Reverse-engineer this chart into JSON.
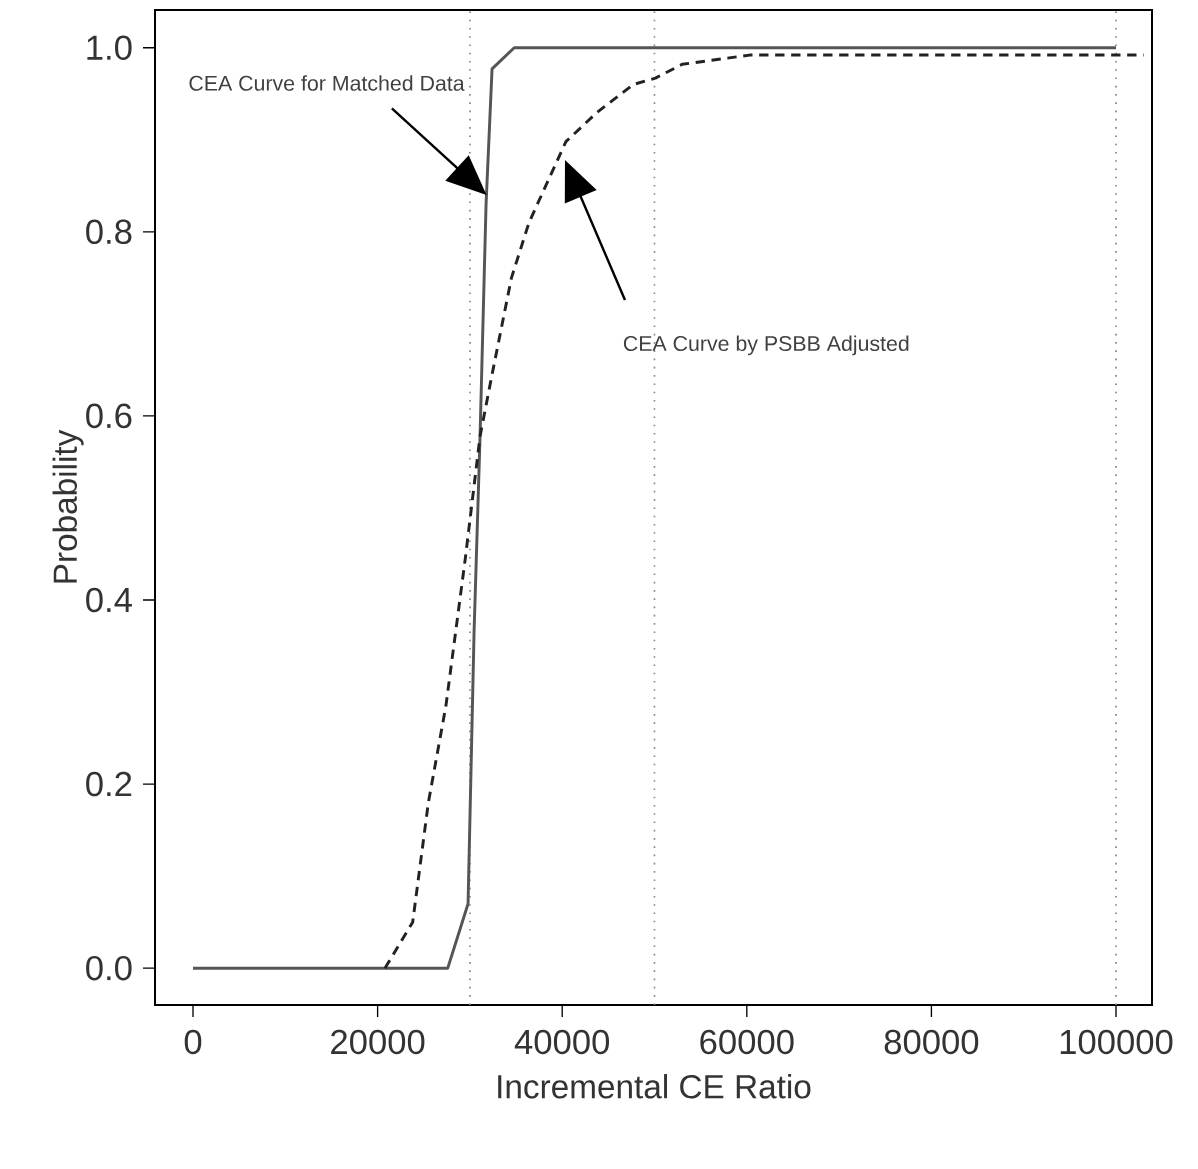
{
  "chart_data": {
    "type": "line",
    "xlabel": "Incremental CE Ratio",
    "ylabel": "Probability",
    "xlim": [
      -4117,
      103900
    ],
    "ylim": [
      -0.04,
      1.041
    ],
    "xticks": [
      0,
      20000,
      40000,
      60000,
      80000,
      100000
    ],
    "yticks": [
      {
        "value": 0,
        "label": "0.0"
      },
      {
        "value": 0.2,
        "label": "0.2"
      },
      {
        "value": 0.4,
        "label": "0.4"
      },
      {
        "value": 0.6,
        "label": "0.6"
      },
      {
        "value": 0.8,
        "label": "0.8"
      },
      {
        "value": 1,
        "label": "1.0"
      }
    ],
    "marker": "none",
    "series": [
      {
        "color": "#555555",
        "line_style": "solid",
        "x": [
          0,
          27600,
          29800,
          30450,
          31100,
          31750,
          32400,
          34800,
          100000
        ],
        "values": [
          0,
          0,
          0.07,
          0.365,
          0.578,
          0.83,
          0.977,
          1.0,
          1.0
        ]
      },
      {
        "color": "#222222",
        "line_style": "dashed",
        "x": [
          20800,
          21100,
          23800,
          25500,
          27400,
          29500,
          31100,
          32400,
          34500,
          36400,
          40400,
          43800,
          47700,
          50100,
          53000,
          60300,
          100000,
          103000
        ],
        "values": [
          0,
          0.005,
          0.05,
          0.18,
          0.285,
          0.445,
          0.578,
          0.645,
          0.75,
          0.81,
          0.898,
          0.93,
          0.96,
          0.967,
          0.982,
          0.992,
          0.992,
          0.992
        ]
      }
    ],
    "ref_lines": [
      {
        "axis": "x",
        "value": 30000,
        "color": "#888888",
        "line_style": "dotted"
      },
      {
        "axis": "x",
        "value": 50000,
        "color": "#888888",
        "line_style": "dotted"
      },
      {
        "axis": "x",
        "value": 100000,
        "color": "#888888",
        "line_style": "dotted"
      }
    ],
    "annotations": [
      "CEA Curve for Matched Data",
      "CEA Curve by PSBB Adjusted"
    ]
  }
}
